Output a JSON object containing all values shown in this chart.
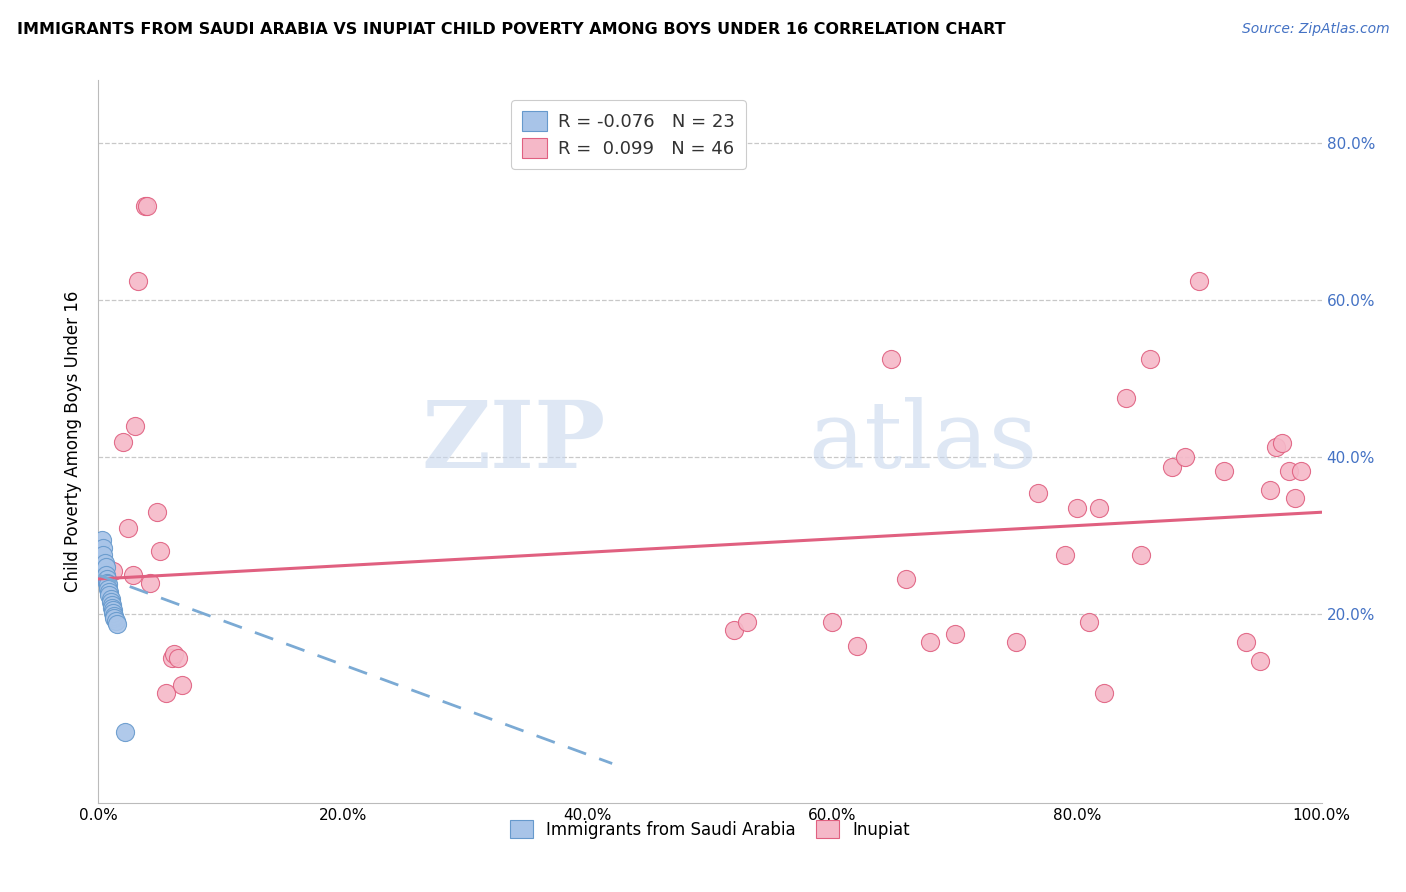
{
  "title": "IMMIGRANTS FROM SAUDI ARABIA VS INUPIAT CHILD POVERTY AMONG BOYS UNDER 16 CORRELATION CHART",
  "source": "Source: ZipAtlas.com",
  "ylabel": "Child Poverty Among Boys Under 16",
  "xlim": [
    0.0,
    1.0
  ],
  "ylim": [
    -0.04,
    0.88
  ],
  "xtick_labels": [
    "0.0%",
    "20.0%",
    "40.0%",
    "60.0%",
    "80.0%",
    "100.0%"
  ],
  "xtick_positions": [
    0.0,
    0.2,
    0.4,
    0.6,
    0.8,
    1.0
  ],
  "ytick_positions": [
    0.2,
    0.4,
    0.6,
    0.8
  ],
  "right_ytick_labels": [
    "20.0%",
    "40.0%",
    "60.0%",
    "80.0%"
  ],
  "watermark_zip": "ZIP",
  "watermark_atlas": "atlas",
  "color_blue_fill": "#A8C4E8",
  "color_blue_edge": "#6699CC",
  "color_pink_fill": "#F5B8C8",
  "color_pink_edge": "#E06080",
  "color_blue_line": "#7BAAD4",
  "color_pink_line": "#E06080",
  "scatter_saudi": [
    [
      0.003,
      0.295
    ],
    [
      0.004,
      0.285
    ],
    [
      0.004,
      0.275
    ],
    [
      0.005,
      0.265
    ],
    [
      0.006,
      0.26
    ],
    [
      0.006,
      0.25
    ],
    [
      0.007,
      0.245
    ],
    [
      0.007,
      0.24
    ],
    [
      0.008,
      0.238
    ],
    [
      0.008,
      0.232
    ],
    [
      0.009,
      0.228
    ],
    [
      0.009,
      0.224
    ],
    [
      0.01,
      0.22
    ],
    [
      0.01,
      0.216
    ],
    [
      0.011,
      0.212
    ],
    [
      0.011,
      0.208
    ],
    [
      0.012,
      0.205
    ],
    [
      0.012,
      0.202
    ],
    [
      0.013,
      0.198
    ],
    [
      0.013,
      0.195
    ],
    [
      0.014,
      0.192
    ],
    [
      0.015,
      0.188
    ],
    [
      0.022,
      0.05
    ]
  ],
  "scatter_inupiat": [
    [
      0.012,
      0.255
    ],
    [
      0.02,
      0.42
    ],
    [
      0.024,
      0.31
    ],
    [
      0.028,
      0.25
    ],
    [
      0.03,
      0.44
    ],
    [
      0.032,
      0.625
    ],
    [
      0.038,
      0.72
    ],
    [
      0.04,
      0.72
    ],
    [
      0.042,
      0.24
    ],
    [
      0.048,
      0.33
    ],
    [
      0.05,
      0.28
    ],
    [
      0.055,
      0.1
    ],
    [
      0.06,
      0.145
    ],
    [
      0.062,
      0.15
    ],
    [
      0.065,
      0.145
    ],
    [
      0.068,
      0.11
    ],
    [
      0.52,
      0.18
    ],
    [
      0.53,
      0.19
    ],
    [
      0.6,
      0.19
    ],
    [
      0.62,
      0.16
    ],
    [
      0.648,
      0.525
    ],
    [
      0.66,
      0.245
    ],
    [
      0.68,
      0.165
    ],
    [
      0.7,
      0.175
    ],
    [
      0.75,
      0.165
    ],
    [
      0.768,
      0.355
    ],
    [
      0.79,
      0.275
    ],
    [
      0.8,
      0.335
    ],
    [
      0.81,
      0.19
    ],
    [
      0.818,
      0.335
    ],
    [
      0.822,
      0.1
    ],
    [
      0.84,
      0.475
    ],
    [
      0.852,
      0.275
    ],
    [
      0.86,
      0.525
    ],
    [
      0.878,
      0.388
    ],
    [
      0.888,
      0.4
    ],
    [
      0.9,
      0.625
    ],
    [
      0.92,
      0.383
    ],
    [
      0.938,
      0.165
    ],
    [
      0.95,
      0.14
    ],
    [
      0.958,
      0.358
    ],
    [
      0.963,
      0.413
    ],
    [
      0.968,
      0.418
    ],
    [
      0.973,
      0.383
    ],
    [
      0.978,
      0.348
    ],
    [
      0.983,
      0.383
    ]
  ],
  "trend_saudi_x0": 0.0,
  "trend_saudi_x1": 0.42,
  "trend_saudi_y0": 0.25,
  "trend_saudi_y1": 0.01,
  "trend_inupiat_x0": 0.0,
  "trend_inupiat_x1": 1.0,
  "trend_inupiat_y0": 0.245,
  "trend_inupiat_y1": 0.33
}
